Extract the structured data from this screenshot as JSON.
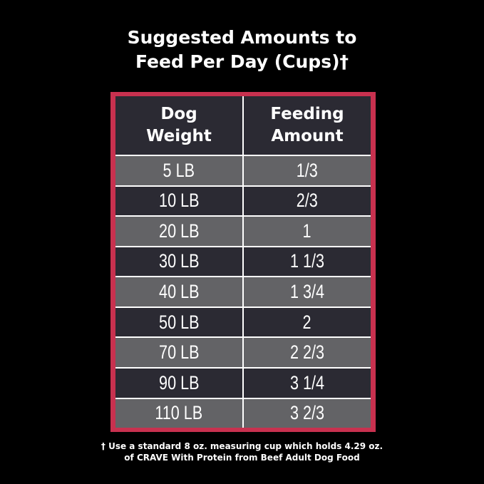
{
  "title_line1": "Suggested Amounts to",
  "title_line2": "Feed Per Day (Cups)†",
  "colors": {
    "border": "#c8314f",
    "header_bg": "#2b2a33",
    "row_light": "#636366",
    "row_dark": "#2b2a33"
  },
  "table": {
    "headers": [
      [
        "Dog",
        "Weight"
      ],
      [
        "Feeding",
        "Amount"
      ]
    ],
    "rows": [
      [
        "5 LB",
        "1/3"
      ],
      [
        "10 LB",
        "2/3"
      ],
      [
        "20 LB",
        "1"
      ],
      [
        "30 LB",
        "1 1/3"
      ],
      [
        "40 LB",
        "1 3/4"
      ],
      [
        "50 LB",
        "2"
      ],
      [
        "70 LB",
        "2 2/3"
      ],
      [
        "90 LB",
        "3 1/4"
      ],
      [
        "110 LB",
        "3 2/3"
      ]
    ]
  },
  "footnote_line1": "† Use a standard 8 oz. measuring cup which holds 4.29 oz.",
  "footnote_line2": "of CRAVE With Protein from Beef Adult Dog Food"
}
